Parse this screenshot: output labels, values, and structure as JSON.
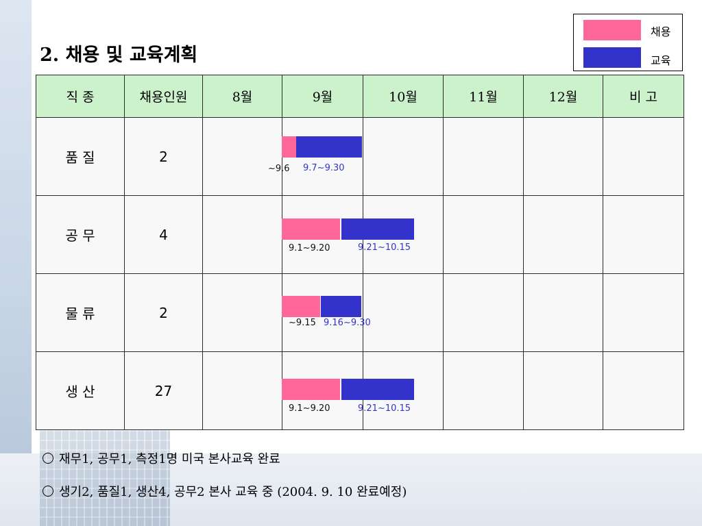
{
  "title": "2. 채용 및 교육계획",
  "legend": [
    {
      "label": "채용",
      "color": "#ff6699"
    },
    {
      "label": "교육",
      "color": "#3333cc"
    }
  ],
  "table": {
    "headers": [
      "직 종",
      "채용인원",
      "8월",
      "9월",
      "10월",
      "11월",
      "12월",
      "비  고"
    ],
    "rows": [
      {
        "job": "품  질",
        "count": "2",
        "remark": "",
        "bars": {
          "recruit_label": "~9.6",
          "training_label": "9.7~9.30"
        }
      },
      {
        "job": "공  무",
        "count": "4",
        "remark": "",
        "bars": {
          "recruit_label": "9.1~9.20",
          "training_label": "9.21~10.15"
        }
      },
      {
        "job": "물  류",
        "count": "2",
        "remark": "",
        "bars": {
          "recruit_label": "~9.15",
          "training_label": "9.16~9.30"
        }
      },
      {
        "job": "생  산",
        "count": "27",
        "remark": "",
        "bars": {
          "recruit_label": "9.1~9.20",
          "training_label": "9.21~10.15"
        }
      }
    ]
  },
  "notes": [
    "재무1, 공무1, 측정1명 미국 본사교육 완료",
    "생기2, 품질1, 생산4, 공무2 본사 교육 중 (2004. 9. 10 완료예정)"
  ]
}
